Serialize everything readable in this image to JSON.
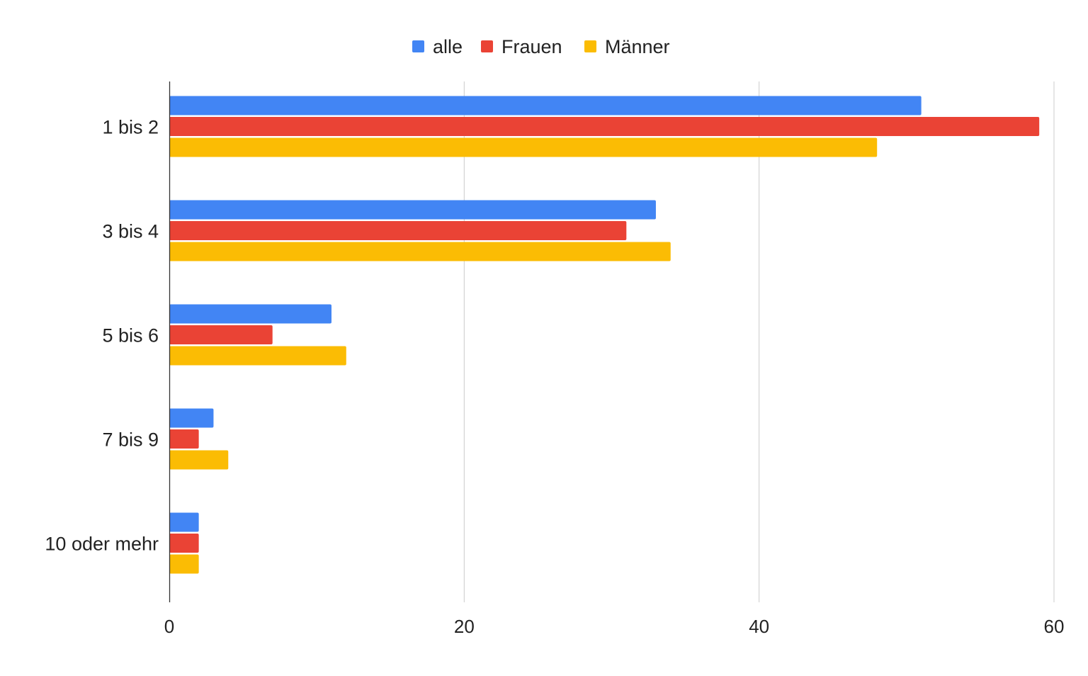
{
  "chart_data": {
    "type": "bar",
    "orientation": "horizontal",
    "title": "",
    "xlabel": "",
    "ylabel": "",
    "categories": [
      "1 bis 2",
      "3 bis 4",
      "5 bis 6",
      "7 bis 9",
      "10 oder mehr"
    ],
    "series": [
      {
        "name": "alle",
        "color": "#4285F4",
        "values": [
          51,
          33,
          11,
          3,
          2
        ]
      },
      {
        "name": "Frauen",
        "color": "#EA4335",
        "values": [
          59,
          31,
          7,
          2,
          2
        ]
      },
      {
        "name": "Männer",
        "color": "#FBBC04",
        "values": [
          48,
          34,
          12,
          4,
          2
        ]
      }
    ],
    "xlim": [
      0,
      60
    ],
    "xticks": [
      "0",
      "20",
      "40",
      "60"
    ],
    "grid": true,
    "legend_position": "top-center"
  }
}
